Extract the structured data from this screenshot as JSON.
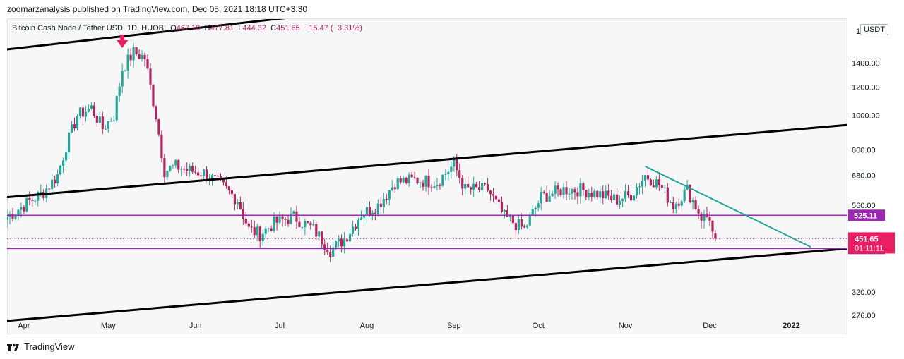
{
  "header": {
    "published_line": "zoomarzanalysis published on TradingView.com, Dec 05, 2021 18:18 UTC+3:30"
  },
  "legend": {
    "symbol": "Bitcoin Cash Node / Tether USD, 1D, HUOBI",
    "open_label": "O",
    "open": "467.10",
    "high_label": "H",
    "high": "477.81",
    "low_label": "L",
    "low": "444.32",
    "close_label": "C",
    "close": "451.65",
    "change": "−15.47 (−3.31%)"
  },
  "axis": {
    "currency_label": "USDT",
    "corner_digit": "1"
  },
  "brand": {
    "name": "TradingView",
    "icon": "tradingview-logo-icon"
  },
  "colors": {
    "bull": "#26a69a",
    "bear": "#b3245c",
    "purple": "#9c27b0",
    "teal_trend": "#22a59a",
    "price_tag": "#e91e63",
    "arrow": "#e91e63",
    "channel": "#000000"
  },
  "chart_data": {
    "type": "candlestick",
    "title": "Bitcoin Cash Node / Tether USD, 1D, HUOBI",
    "y_scale": "log",
    "ylim": [
      245,
      1860
    ],
    "y_ticks": [
      276,
      320,
      560,
      680,
      800,
      1000,
      1200,
      1400
    ],
    "y_tick_labels": [
      "276.00",
      "320.00",
      "560.00",
      "680.00",
      "800.00",
      "1000.00",
      "1200.00",
      "1400.00"
    ],
    "x_range": [
      "2021-03-28",
      "2022-01-21"
    ],
    "x_ticks": [
      {
        "date": "2021-04-01",
        "label": "Apr"
      },
      {
        "date": "2021-05-01",
        "label": "May"
      },
      {
        "date": "2021-06-01",
        "label": "Jun"
      },
      {
        "date": "2021-07-01",
        "label": "Jul"
      },
      {
        "date": "2021-08-01",
        "label": "Aug"
      },
      {
        "date": "2021-09-01",
        "label": "Sep"
      },
      {
        "date": "2021-10-01",
        "label": "Oct"
      },
      {
        "date": "2021-11-01",
        "label": "Nov"
      },
      {
        "date": "2021-12-01",
        "label": "Dec"
      },
      {
        "date": "2022-01-01",
        "label": "2022"
      }
    ],
    "close_anchors": [
      [
        "2021-03-28",
        520
      ],
      [
        "2021-04-03",
        560
      ],
      [
        "2021-04-10",
        610
      ],
      [
        "2021-04-15",
        680
      ],
      [
        "2021-04-18",
        820
      ],
      [
        "2021-04-22",
        1000
      ],
      [
        "2021-04-27",
        1050
      ],
      [
        "2021-05-01",
        920
      ],
      [
        "2021-05-05",
        1000
      ],
      [
        "2021-05-08",
        1350
      ],
      [
        "2021-05-12",
        1500
      ],
      [
        "2021-05-16",
        1450
      ],
      [
        "2021-05-20",
        1000
      ],
      [
        "2021-05-23",
        700
      ],
      [
        "2021-05-27",
        720
      ],
      [
        "2021-06-01",
        700
      ],
      [
        "2021-06-06",
        690
      ],
      [
        "2021-06-12",
        640
      ],
      [
        "2021-06-18",
        580
      ],
      [
        "2021-06-22",
        480
      ],
      [
        "2021-06-26",
        465
      ],
      [
        "2021-07-01",
        500
      ],
      [
        "2021-07-08",
        520
      ],
      [
        "2021-07-15",
        480
      ],
      [
        "2021-07-21",
        420
      ],
      [
        "2021-07-26",
        450
      ],
      [
        "2021-08-01",
        530
      ],
      [
        "2021-08-07",
        560
      ],
      [
        "2021-08-13",
        650
      ],
      [
        "2021-08-20",
        660
      ],
      [
        "2021-08-28",
        650
      ],
      [
        "2021-09-03",
        730
      ],
      [
        "2021-09-07",
        620
      ],
      [
        "2021-09-15",
        620
      ],
      [
        "2021-09-21",
        520
      ],
      [
        "2021-09-28",
        480
      ],
      [
        "2021-10-04",
        590
      ],
      [
        "2021-10-12",
        620
      ],
      [
        "2021-10-18",
        620
      ],
      [
        "2021-10-25",
        600
      ],
      [
        "2021-10-31",
        580
      ],
      [
        "2021-11-05",
        600
      ],
      [
        "2021-11-10",
        680
      ],
      [
        "2021-11-15",
        640
      ],
      [
        "2021-11-20",
        560
      ],
      [
        "2021-11-25",
        620
      ],
      [
        "2021-11-30",
        520
      ],
      [
        "2021-12-03",
        520
      ],
      [
        "2021-12-04",
        467
      ],
      [
        "2021-12-05",
        451.65
      ]
    ],
    "last_candle": {
      "date": "2021-12-05",
      "open": 467.1,
      "high": 477.81,
      "low": 444.32,
      "close": 451.65
    },
    "drawings": {
      "channel_lines": [
        {
          "from": [
            "2021-03-28",
            1530
          ],
          "to": [
            "2021-09-04",
            2120
          ]
        },
        {
          "from": [
            "2021-03-28",
            590
          ],
          "to": [
            "2022-01-21",
            940
          ]
        },
        {
          "from": [
            "2021-03-28",
            266
          ],
          "to": [
            "2022-01-21",
            424
          ]
        }
      ],
      "horizontal_levels": [
        {
          "price": 525.11,
          "label": "525.11",
          "color": "purple"
        },
        {
          "price": 424.0,
          "label": "424.00",
          "color": "purple"
        }
      ],
      "trendline": {
        "from": [
          "2021-11-10",
          720
        ],
        "to": [
          "2022-01-08",
          428
        ],
        "color": "teal_trend"
      },
      "last_price_line": 451.65,
      "marker_arrow_date": "2021-05-08"
    },
    "price_tag": {
      "price": "451.65",
      "countdown": "01:11:11"
    }
  }
}
